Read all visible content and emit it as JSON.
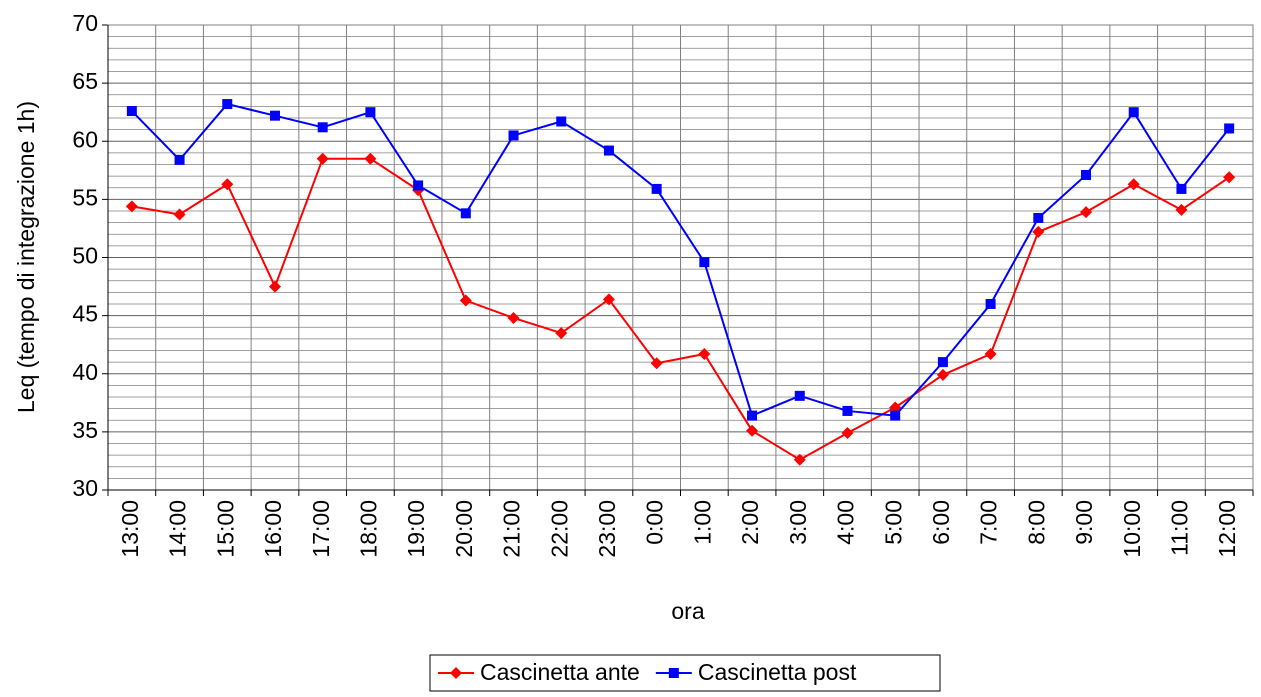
{
  "chart_data": {
    "type": "line",
    "x_label": "ora",
    "y_label": "Leq (tempo di integrazione 1h)",
    "categories": [
      "13:00",
      "14:00",
      "15:00",
      "16:00",
      "17:00",
      "18:00",
      "19:00",
      "20:00",
      "21:00",
      "22:00",
      "23:00",
      "0:00",
      "1:00",
      "2:00",
      "3:00",
      "4:00",
      "5:00",
      "6:00",
      "7:00",
      "8:00",
      "9:00",
      "10:00",
      "11:00",
      "12:00"
    ],
    "series": [
      {
        "name": "Cascinetta ante",
        "color": "#ff0000",
        "marker": "diamond",
        "values": [
          54.4,
          53.7,
          56.3,
          47.5,
          58.5,
          58.5,
          55.8,
          46.3,
          44.8,
          43.5,
          46.4,
          40.9,
          41.7,
          35.1,
          32.6,
          34.9,
          37.1,
          39.9,
          41.7,
          52.2,
          53.9,
          56.3,
          54.1,
          56.9
        ]
      },
      {
        "name": "Cascinetta post",
        "color": "#0000ff",
        "marker": "square",
        "values": [
          62.6,
          58.4,
          63.2,
          62.2,
          61.2,
          62.5,
          56.2,
          53.8,
          60.5,
          61.7,
          59.2,
          55.9,
          49.6,
          36.4,
          38.1,
          36.8,
          36.4,
          41.0,
          46.0,
          53.4,
          57.1,
          62.5,
          55.9,
          61.1
        ]
      }
    ],
    "ylim": [
      30,
      70
    ],
    "yticks": [
      30,
      35,
      40,
      45,
      50,
      55,
      60,
      65,
      70
    ],
    "yminorticks": [
      31,
      32,
      33,
      34,
      36,
      37,
      38,
      39,
      41,
      42,
      43,
      44,
      46,
      47,
      48,
      49,
      51,
      52,
      53,
      54,
      56,
      57,
      58,
      59,
      61,
      62,
      63,
      64,
      66,
      67,
      68,
      69
    ],
    "grid": true,
    "legend": "bottom"
  }
}
